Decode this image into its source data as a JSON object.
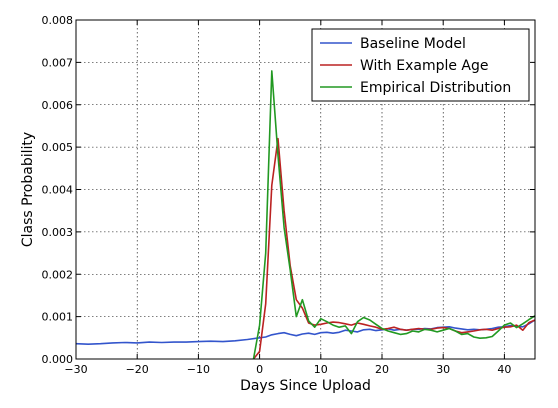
{
  "chart_data": {
    "type": "line",
    "title": "",
    "xlabel": "Days Since Upload",
    "ylabel": "Class Probability",
    "xlim": [
      -30,
      45
    ],
    "ylim": [
      0,
      0.008
    ],
    "xticks": [
      -30,
      -20,
      -10,
      0,
      10,
      20,
      30,
      40
    ],
    "xtick_labels": [
      "−30",
      "−20",
      "−10",
      "0",
      "10",
      "20",
      "30",
      "40"
    ],
    "yticks": [
      0,
      0.001,
      0.002,
      0.003,
      0.004,
      0.005,
      0.006,
      0.007,
      0.008
    ],
    "ytick_labels": [
      "0.000",
      "0.001",
      "0.002",
      "0.003",
      "0.004",
      "0.005",
      "0.006",
      "0.007",
      "0.008"
    ],
    "grid": true,
    "legend_position": "top-right",
    "series": [
      {
        "name": "Baseline Model",
        "color": "#3355cc",
        "x": [
          -30,
          -28,
          -26,
          -24,
          -22,
          -20,
          -18,
          -16,
          -14,
          -12,
          -10,
          -8,
          -6,
          -4,
          -2,
          0,
          1,
          2,
          3,
          4,
          5,
          6,
          7,
          8,
          9,
          10,
          11,
          12,
          13,
          14,
          15,
          16,
          17,
          18,
          19,
          20,
          21,
          22,
          23,
          24,
          25,
          26,
          27,
          28,
          29,
          30,
          31,
          32,
          33,
          34,
          35,
          36,
          37,
          38,
          39,
          40,
          41,
          42,
          43,
          44,
          45
        ],
        "y": [
          0.00036,
          0.00035,
          0.00036,
          0.00038,
          0.00039,
          0.00038,
          0.0004,
          0.00039,
          0.0004,
          0.0004,
          0.00041,
          0.00042,
          0.00041,
          0.00043,
          0.00046,
          0.0005,
          0.00052,
          0.00057,
          0.0006,
          0.00062,
          0.00058,
          0.00055,
          0.00059,
          0.00061,
          0.00058,
          0.00062,
          0.00063,
          0.00061,
          0.00063,
          0.00068,
          0.00066,
          0.00064,
          0.00069,
          0.0007,
          0.00067,
          0.00069,
          0.00071,
          0.00068,
          0.0007,
          0.00068,
          0.0007,
          0.0007,
          0.00072,
          0.00071,
          0.00074,
          0.00075,
          0.00076,
          0.00073,
          0.00071,
          0.00069,
          0.0007,
          0.00069,
          0.0007,
          0.00072,
          0.00075,
          0.00076,
          0.00079,
          0.00077,
          0.00076,
          0.00083,
          0.00092
        ]
      },
      {
        "name": "With Example Age",
        "color": "#bb2222",
        "x": [
          -1,
          0,
          1,
          2,
          3,
          4,
          5,
          6,
          7,
          8,
          9,
          10,
          11,
          12,
          13,
          14,
          15,
          16,
          17,
          18,
          19,
          20,
          21,
          22,
          23,
          24,
          25,
          26,
          27,
          28,
          29,
          30,
          31,
          32,
          33,
          34,
          35,
          36,
          37,
          38,
          39,
          40,
          41,
          42,
          43,
          44,
          45
        ],
        "y": [
          0.0,
          0.00018,
          0.0013,
          0.0041,
          0.0052,
          0.0035,
          0.0022,
          0.0014,
          0.0012,
          0.00085,
          0.0008,
          0.00082,
          0.00085,
          0.00087,
          0.00086,
          0.00083,
          0.0008,
          0.00085,
          0.00082,
          0.00078,
          0.00075,
          0.0007,
          0.00072,
          0.00075,
          0.0007,
          0.00068,
          0.0007,
          0.00072,
          0.0007,
          0.0007,
          0.00073,
          0.00074,
          0.00072,
          0.00066,
          0.00062,
          0.00064,
          0.00066,
          0.00069,
          0.0007,
          0.00068,
          0.00072,
          0.00075,
          0.00076,
          0.0008,
          0.00068,
          0.00086,
          0.00092
        ]
      },
      {
        "name": "Empirical Distribution",
        "color": "#229922",
        "x": [
          -1,
          0,
          1,
          2,
          3,
          4,
          5,
          6,
          7,
          8,
          9,
          10,
          11,
          12,
          13,
          14,
          15,
          16,
          17,
          18,
          19,
          20,
          21,
          22,
          23,
          24,
          25,
          26,
          27,
          28,
          29,
          30,
          31,
          32,
          33,
          34,
          35,
          36,
          37,
          38,
          39,
          40,
          41,
          42,
          43,
          44,
          45
        ],
        "y": [
          0.0,
          0.0008,
          0.0025,
          0.0068,
          0.0048,
          0.0031,
          0.0021,
          0.001,
          0.0014,
          0.0009,
          0.00075,
          0.00095,
          0.00088,
          0.0008,
          0.00075,
          0.00078,
          0.0006,
          0.00088,
          0.00098,
          0.00092,
          0.00082,
          0.00072,
          0.00066,
          0.00062,
          0.00058,
          0.0006,
          0.00066,
          0.00064,
          0.0007,
          0.00068,
          0.00064,
          0.00068,
          0.00072,
          0.00066,
          0.00058,
          0.0006,
          0.00052,
          0.00049,
          0.0005,
          0.00053,
          0.00066,
          0.0008,
          0.00085,
          0.00074,
          0.00083,
          0.00093,
          0.00102
        ]
      }
    ]
  }
}
